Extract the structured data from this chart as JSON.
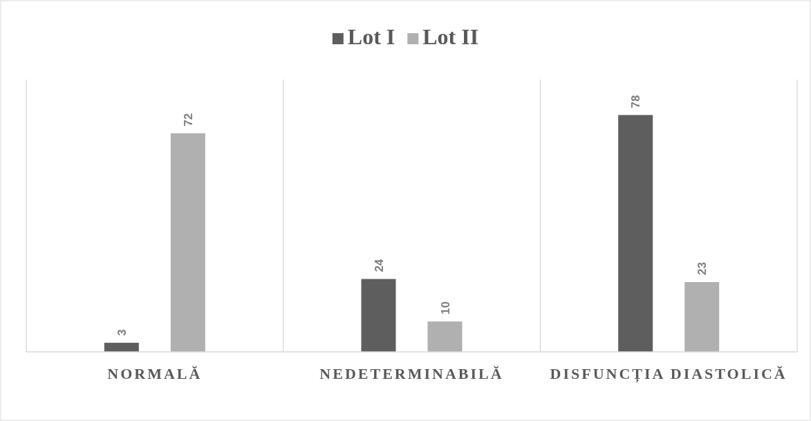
{
  "chart_data": {
    "type": "bar",
    "categories": [
      "NORMALĂ",
      "NEDETERMINABILĂ",
      "DISFUNCȚIA DIASTOLICĂ"
    ],
    "series": [
      {
        "name": "Lot I",
        "color": "#5e5e5e",
        "values": [
          3,
          24,
          78
        ]
      },
      {
        "name": "Lot II",
        "color": "#b0b0b0",
        "values": [
          72,
          10,
          23
        ]
      }
    ],
    "data_labels": true,
    "legend": "top",
    "grid": "x"
  }
}
